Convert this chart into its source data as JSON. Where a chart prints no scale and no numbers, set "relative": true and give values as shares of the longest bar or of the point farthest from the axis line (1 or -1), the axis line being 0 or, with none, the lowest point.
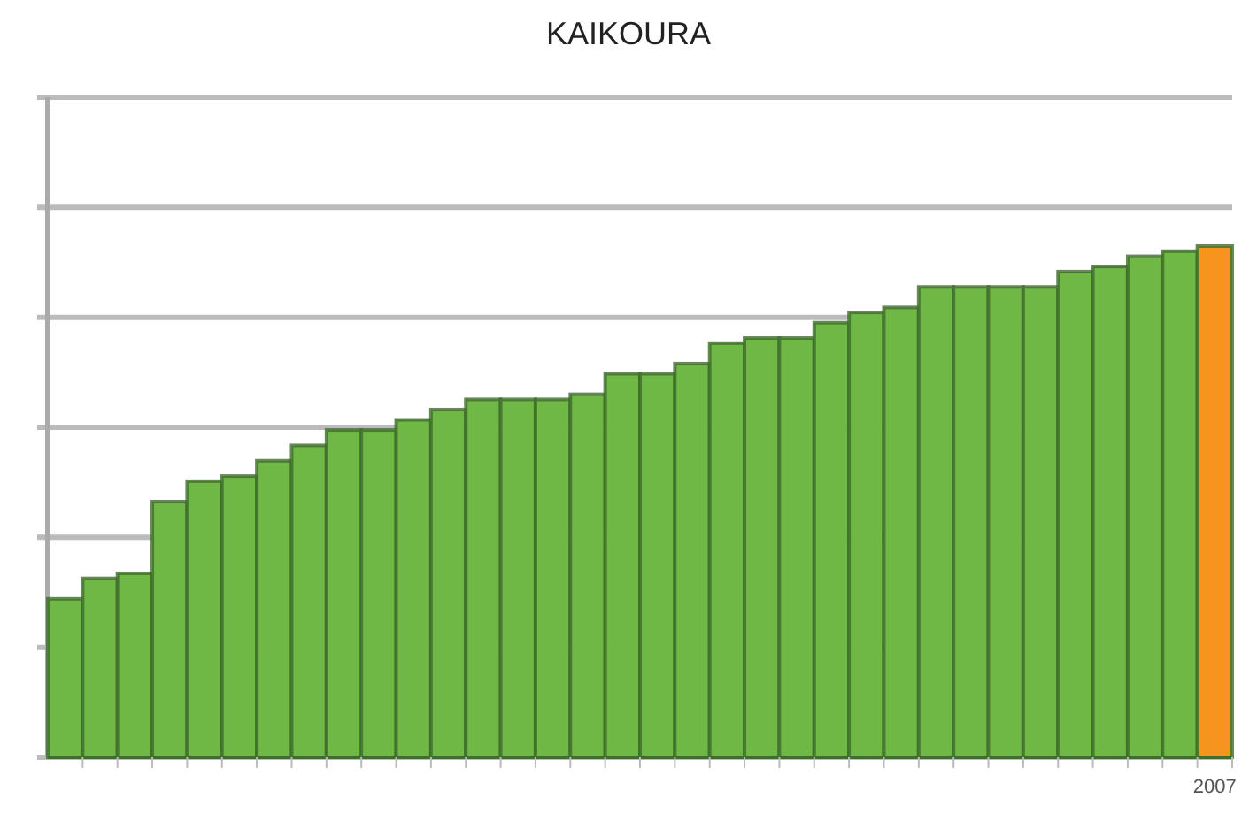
{
  "chart_data": {
    "type": "bar",
    "title": "KAIKOURA",
    "relative": true,
    "grid": "y",
    "categories": [
      null,
      null,
      null,
      null,
      null,
      null,
      null,
      null,
      null,
      null,
      null,
      null,
      null,
      null,
      null,
      null,
      null,
      null,
      null,
      null,
      null,
      null,
      null,
      null,
      null,
      null,
      null,
      null,
      null,
      null,
      null,
      null,
      null,
      "2007"
    ],
    "values": [
      0.31,
      0.35,
      0.36,
      0.5,
      0.54,
      0.55,
      0.58,
      0.61,
      0.64,
      0.64,
      0.66,
      0.68,
      0.7,
      0.7,
      0.7,
      0.71,
      0.75,
      0.75,
      0.77,
      0.81,
      0.82,
      0.82,
      0.85,
      0.87,
      0.88,
      0.92,
      0.92,
      0.92,
      0.92,
      0.95,
      0.96,
      0.98,
      0.99,
      1
    ],
    "colors": [
      "#70b845",
      "#70b845",
      "#70b845",
      "#70b845",
      "#70b845",
      "#70b845",
      "#70b845",
      "#70b845",
      "#70b845",
      "#70b845",
      "#70b845",
      "#70b845",
      "#70b845",
      "#70b845",
      "#70b845",
      "#70b845",
      "#70b845",
      "#70b845",
      "#70b845",
      "#70b845",
      "#70b845",
      "#70b845",
      "#70b845",
      "#70b845",
      "#70b845",
      "#70b845",
      "#70b845",
      "#70b845",
      "#70b845",
      "#70b845",
      "#70b845",
      "#70b845",
      "#70b845",
      "#f7941d"
    ]
  }
}
